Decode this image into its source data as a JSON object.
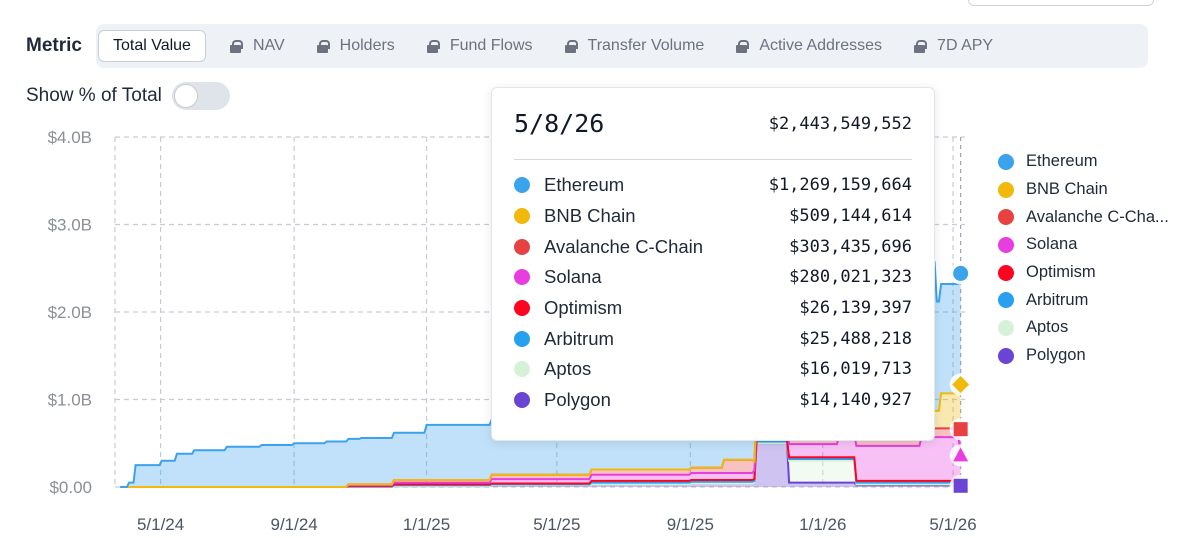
{
  "metric": {
    "label": "Metric",
    "tabs": [
      {
        "label": "Total Value",
        "active": true,
        "locked": false
      },
      {
        "label": "NAV",
        "active": false,
        "locked": true
      },
      {
        "label": "Holders",
        "active": false,
        "locked": true
      },
      {
        "label": "Fund Flows",
        "active": false,
        "locked": true
      },
      {
        "label": "Transfer Volume",
        "active": false,
        "locked": true
      },
      {
        "label": "Active Addresses",
        "active": false,
        "locked": true
      },
      {
        "label": "7D APY",
        "active": false,
        "locked": true
      }
    ]
  },
  "toggle": {
    "label": "Show % of Total",
    "on": false
  },
  "tooltip": {
    "date": "5/8/26",
    "total": "$2,443,549,552",
    "rows": [
      {
        "name": "Ethereum",
        "value": "$1,269,159,664",
        "color": "#3ba3ec"
      },
      {
        "name": "BNB Chain",
        "value": "$509,144,614",
        "color": "#f0b90b"
      },
      {
        "name": "Avalanche C-Chain",
        "value": "$303,435,696",
        "color": "#e84142"
      },
      {
        "name": "Solana",
        "value": "$280,021,323",
        "color": "#e83ee0"
      },
      {
        "name": "Optimism",
        "value": "$26,139,397",
        "color": "#ff0420"
      },
      {
        "name": "Arbitrum",
        "value": "$25,488,218",
        "color": "#28a0f0"
      },
      {
        "name": "Aptos",
        "value": "$16,019,713",
        "color": "#d6f2d6"
      },
      {
        "name": "Polygon",
        "value": "$14,140,927",
        "color": "#6a44d4"
      }
    ]
  },
  "legend": [
    {
      "name": "Ethereum",
      "color": "#3ba3ec"
    },
    {
      "name": "BNB Chain",
      "color": "#f0b90b"
    },
    {
      "name": "Avalanche C-Cha...",
      "color": "#e84142"
    },
    {
      "name": "Solana",
      "color": "#e83ee0"
    },
    {
      "name": "Optimism",
      "color": "#ff0420"
    },
    {
      "name": "Arbitrum",
      "color": "#28a0f0"
    },
    {
      "name": "Aptos",
      "color": "#d6f2d6"
    },
    {
      "name": "Polygon",
      "color": "#6a44d4"
    }
  ],
  "chart_data": {
    "type": "area",
    "stacked": true,
    "y_tick_labels": [
      "$0.00",
      "$1.0B",
      "$2.0B",
      "$3.0B",
      "$4.0B"
    ],
    "y_ticks": [
      0,
      1.0,
      2.0,
      3.0,
      4.0
    ],
    "ylim": [
      0,
      4.0
    ],
    "y_unit": "billions USD",
    "x_tick_labels": [
      "5/1/24",
      "9/1/24",
      "1/1/25",
      "5/1/25",
      "9/1/25",
      "1/1/26",
      "5/1/26"
    ],
    "x_ticks": [
      "2024-05-01",
      "2024-09-01",
      "2025-01-01",
      "2025-05-01",
      "2025-09-01",
      "2026-01-01",
      "2026-05-01"
    ],
    "xlim": [
      "2024-03-20",
      "2026-05-12"
    ],
    "grid": true,
    "legend_position": "right",
    "hover_date": "2026-05-08",
    "series": [
      {
        "name": "Polygon",
        "color": "#6a44d4",
        "x": [
          "2024-03-25",
          "2024-10-20",
          "2024-12-01",
          "2025-03-01",
          "2025-06-01",
          "2025-09-01",
          "2025-10-30",
          "2025-11-01",
          "2025-11-30",
          "2025-12-01",
          "2026-02-01",
          "2026-05-08"
        ],
        "values": [
          0,
          0,
          0.01,
          0.02,
          0.03,
          0.04,
          0.05,
          0.5,
          0.5,
          0.05,
          0.02,
          0.014
        ]
      },
      {
        "name": "Aptos",
        "color": "#d6f2d6",
        "x": [
          "2024-03-25",
          "2024-10-20",
          "2025-10-30",
          "2025-11-01",
          "2025-12-01",
          "2026-01-15",
          "2026-02-01",
          "2026-05-08"
        ],
        "values": [
          0,
          0,
          0,
          0,
          0.25,
          0.25,
          0.01,
          0.016
        ]
      },
      {
        "name": "Arbitrum",
        "color": "#28a0f0",
        "x": [
          "2024-03-25",
          "2024-10-20",
          "2024-12-01",
          "2025-06-01",
          "2025-10-30",
          "2026-05-08"
        ],
        "values": [
          0,
          0.005,
          0.01,
          0.02,
          0.02,
          0.025
        ]
      },
      {
        "name": "Optimism",
        "color": "#ff0420",
        "x": [
          "2024-03-25",
          "2024-10-20",
          "2024-12-01",
          "2025-06-01",
          "2025-10-30",
          "2026-05-08"
        ],
        "values": [
          0,
          0.005,
          0.01,
          0.02,
          0.02,
          0.026
        ]
      },
      {
        "name": "Solana",
        "color": "#e83ee0",
        "x": [
          "2024-03-25",
          "2024-10-20",
          "2024-12-01",
          "2025-03-01",
          "2025-06-01",
          "2025-09-01",
          "2025-10-30",
          "2025-11-01",
          "2026-01-15",
          "2026-02-01",
          "2026-04-01",
          "2026-05-08"
        ],
        "values": [
          0,
          0.01,
          0.02,
          0.05,
          0.07,
          0.08,
          0.1,
          0.15,
          0.25,
          0.4,
          0.5,
          0.28
        ]
      },
      {
        "name": "Avalanche C-Chain",
        "color": "#e84142",
        "x": [
          "2024-03-25",
          "2024-10-20",
          "2024-12-01",
          "2025-03-01",
          "2025-06-01",
          "2025-09-01",
          "2025-10-01",
          "2025-10-30",
          "2026-02-01",
          "2026-05-08"
        ],
        "values": [
          0,
          0.01,
          0.03,
          0.05,
          0.06,
          0.06,
          0.15,
          0.1,
          0.1,
          0.3
        ]
      },
      {
        "name": "BNB Chain",
        "color": "#f0b90b",
        "x": [
          "2024-03-25",
          "2025-09-01",
          "2025-10-30",
          "2026-02-01",
          "2026-03-15",
          "2026-04-20",
          "2026-05-08"
        ],
        "values": [
          0,
          0,
          0,
          0,
          0.2,
          0.4,
          0.51
        ]
      },
      {
        "name": "Ethereum",
        "color": "#3ba3ec",
        "x": [
          "2024-03-25",
          "2024-04-01",
          "2024-04-08",
          "2024-05-01",
          "2024-05-15",
          "2024-06-01",
          "2024-07-01",
          "2024-08-01",
          "2024-09-01",
          "2024-10-01",
          "2024-11-01",
          "2024-12-01",
          "2024-12-31",
          "2025-01-01",
          "2025-03-01",
          "2025-05-01",
          "2025-07-01",
          "2025-09-01",
          "2025-10-30",
          "2026-01-01",
          "2026-03-01",
          "2026-04-01",
          "2026-04-15",
          "2026-05-08"
        ],
        "values": [
          0.0,
          0.05,
          0.25,
          0.3,
          0.38,
          0.42,
          0.46,
          0.48,
          0.5,
          0.52,
          0.53,
          0.54,
          0.57,
          0.63,
          0.63,
          0.6,
          0.6,
          0.62,
          0.72,
          0.85,
          0.8,
          1.7,
          1.25,
          1.27
        ]
      }
    ]
  }
}
